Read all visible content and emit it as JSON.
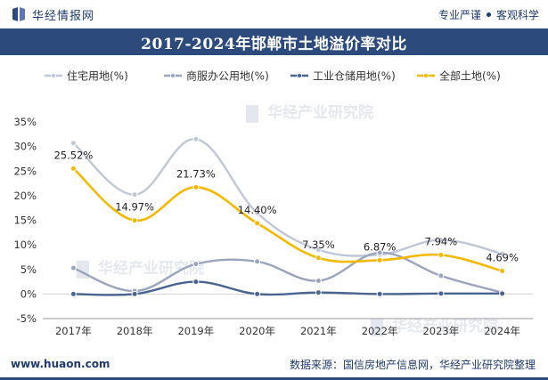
{
  "header": {
    "brand_name": "华经情报网",
    "tagline_left": "专业严谨",
    "tagline_right": "客观科学"
  },
  "footer": {
    "url": "www.huaon.com",
    "source": "数据来源：国信房地产信息网，华经产业研究院整理"
  },
  "watermark_text": "华经产业研究院",
  "colors": {
    "residential": "#bfc6d6",
    "commercial": "#9aa5bd",
    "industrial": "#4a6490",
    "total": "#f5b800",
    "title_bg": "#2d4a7c"
  },
  "chart_data": {
    "type": "line",
    "title": "2017-2024年邯郸市土地溢价率对比",
    "categories": [
      "2017年",
      "2018年",
      "2019年",
      "2020年",
      "2021年",
      "2022年",
      "2023年",
      "2024年"
    ],
    "y_ticks": [
      "35%",
      "30%",
      "25%",
      "20%",
      "15%",
      "10%",
      "5%",
      "0%",
      "-5%"
    ],
    "ylim": [
      -5,
      35
    ],
    "legend_position": "top",
    "series": [
      {
        "name": "住宅用地(%)",
        "values": [
          30.7,
          20.2,
          31.5,
          16.5,
          9.0,
          8.0,
          11.0,
          8.2
        ],
        "color": "#bfc6d6",
        "data_labels": [
          "",
          "",
          "",
          "",
          "",
          "",
          "",
          ""
        ]
      },
      {
        "name": "商服办公用地(%)",
        "values": [
          5.3,
          0.6,
          6.1,
          6.6,
          2.7,
          8.4,
          3.7,
          0.3
        ],
        "color": "#9aa5bd",
        "data_labels": [
          "",
          "",
          "",
          "",
          "",
          "",
          "",
          ""
        ]
      },
      {
        "name": "工业仓储用地(%)",
        "values": [
          0.0,
          0.0,
          2.5,
          0.0,
          0.3,
          0.0,
          0.1,
          0.1
        ],
        "color": "#4a6490",
        "data_labels": [
          "",
          "",
          "",
          "",
          "",
          "",
          "",
          ""
        ]
      },
      {
        "name": "全部土地(%)",
        "values": [
          25.52,
          14.97,
          21.73,
          14.4,
          7.35,
          6.87,
          7.94,
          4.69
        ],
        "color": "#f5b800",
        "data_labels": [
          "25.52%",
          "14.97%",
          "21.73%",
          "14.40%",
          "7.35%",
          "6.87%",
          "7.94%",
          "4.69%"
        ]
      }
    ]
  }
}
